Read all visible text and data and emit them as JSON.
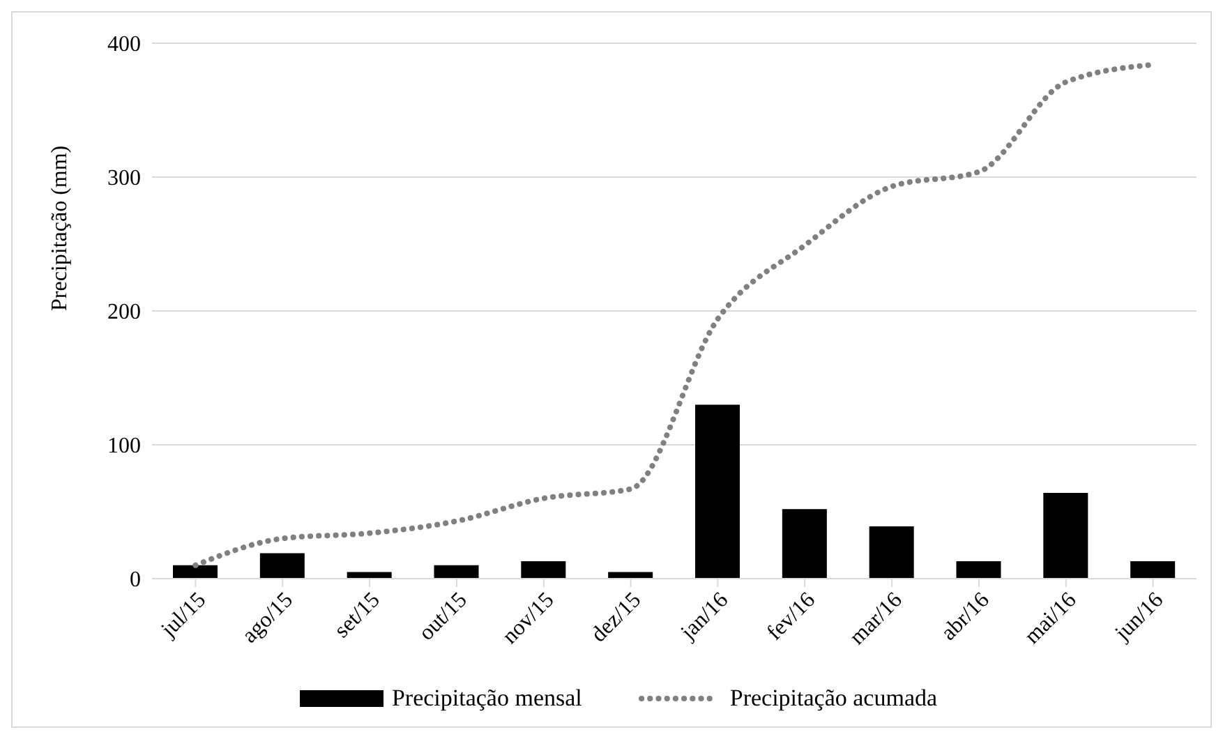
{
  "chart_data": {
    "type": "bar",
    "ylabel": "Precipitação (mm)",
    "categories": [
      "jul/15",
      "ago/15",
      "set/15",
      "out/15",
      "nov/15",
      "dez/15",
      "jan/16",
      "fev/16",
      "mar/16",
      "abr/16",
      "mai/16",
      "jun/16"
    ],
    "series": [
      {
        "name": "Precipitação mensal",
        "color": "#000000",
        "values": [
          10,
          19,
          5,
          10,
          13,
          5,
          130,
          52,
          39,
          13,
          64,
          13
        ]
      },
      {
        "name": "Precipitação acumada",
        "type": "line",
        "color": "#808080",
        "line_style": "dotted",
        "values": [
          10,
          30,
          34,
          43,
          60,
          67,
          194,
          249,
          293,
          304,
          371,
          384
        ]
      }
    ],
    "ylim": [
      0,
      400
    ],
    "yticks": [
      0,
      100,
      200,
      300,
      400
    ],
    "grid": "y",
    "legend": "bottom",
    "marker": "none"
  }
}
